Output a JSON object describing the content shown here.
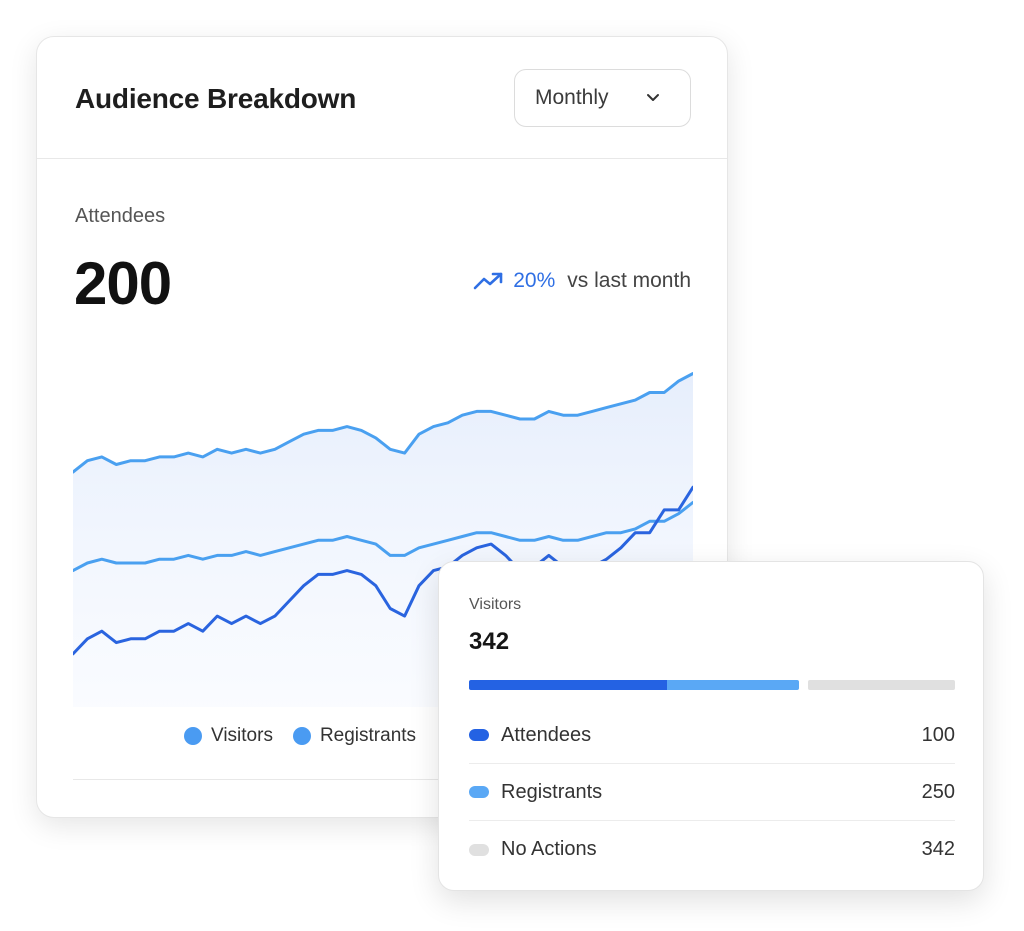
{
  "card": {
    "title": "Audience Breakdown",
    "dropdown": {
      "selected": "Monthly",
      "icon": "chevron-down-icon"
    },
    "stat": {
      "label": "Attendees",
      "value": "200",
      "trend_icon": "trend-up-icon",
      "trend_pct": "20%",
      "trend_text": "vs last month"
    },
    "legend": [
      {
        "label": "Visitors",
        "color": "#4a9bf2"
      },
      {
        "label": "Registrants",
        "color": "#4a9bf2"
      }
    ]
  },
  "colors": {
    "visitors_line": "#4aa0f0",
    "registrants_line": "#4aa0f0",
    "attendees_line": "#2a64df",
    "area_fill": "#e8f0fd",
    "bar_attendees": "#2462e3",
    "bar_registrants": "#5aa8f5",
    "bar_none": "#e0e0e0"
  },
  "chart_data": {
    "type": "area",
    "series": [
      {
        "name": "Visitors",
        "values": [
          82,
          85,
          86,
          84,
          85,
          85,
          86,
          86,
          87,
          86,
          88,
          87,
          88,
          87,
          88,
          90,
          92,
          93,
          93,
          94,
          93,
          91,
          88,
          87,
          92,
          94,
          95,
          97,
          98,
          98,
          97,
          96,
          96,
          98,
          97,
          97,
          98,
          99,
          100,
          101,
          103,
          103,
          106,
          108
        ]
      },
      {
        "name": "Registrants",
        "values": [
          56,
          58,
          59,
          58,
          58,
          58,
          59,
          59,
          60,
          59,
          60,
          60,
          61,
          60,
          61,
          62,
          63,
          64,
          64,
          65,
          64,
          63,
          60,
          60,
          62,
          63,
          64,
          65,
          66,
          66,
          65,
          64,
          64,
          65,
          64,
          64,
          65,
          66,
          66,
          67,
          69,
          69,
          71,
          74
        ]
      },
      {
        "name": "Attendees",
        "values": [
          34,
          38,
          40,
          37,
          38,
          38,
          40,
          40,
          42,
          40,
          44,
          42,
          44,
          42,
          44,
          48,
          52,
          55,
          55,
          56,
          55,
          52,
          46,
          44,
          52,
          56,
          57,
          60,
          62,
          63,
          60,
          56,
          57,
          60,
          57,
          56,
          57,
          59,
          62,
          66,
          66,
          72,
          72,
          78
        ]
      }
    ],
    "ylim": [
      20,
      115
    ]
  },
  "popup": {
    "label": "Visitors",
    "value": "342",
    "bar": {
      "attendees_share": 0.408,
      "registrants_share": 0.27,
      "gap_share": 0.02,
      "none_share": 0.302
    },
    "rows": [
      {
        "label": "Attendees",
        "value": "100",
        "color_key": "bar_attendees"
      },
      {
        "label": "Registrants",
        "value": "250",
        "color_key": "bar_registrants"
      },
      {
        "label": "No Actions",
        "value": "342",
        "color_key": "bar_none"
      }
    ]
  }
}
